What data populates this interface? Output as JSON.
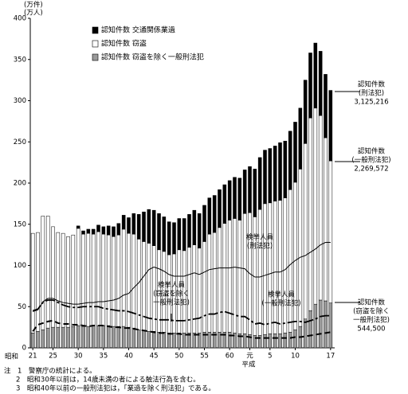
{
  "chart_data": {
    "type": "bar",
    "stacked": true,
    "y_unit_labels": [
      "(万件)",
      "(万人)"
    ],
    "ylim": [
      0,
      400
    ],
    "yticks": [
      0,
      50,
      100,
      150,
      200,
      250,
      300,
      350,
      400
    ],
    "categories": [
      "21",
      null,
      null,
      null,
      "25",
      null,
      null,
      null,
      null,
      "30",
      null,
      null,
      null,
      null,
      "35",
      null,
      null,
      null,
      null,
      "40",
      null,
      null,
      null,
      null,
      "45",
      null,
      null,
      null,
      null,
      "50",
      null,
      null,
      null,
      null,
      "55",
      null,
      null,
      null,
      null,
      "60",
      null,
      null,
      null,
      "元",
      null,
      null,
      null,
      "5",
      null,
      null,
      null,
      null,
      "10",
      null,
      null,
      null,
      null,
      null,
      null,
      "17"
    ],
    "era_labels": [
      "昭和",
      "平成"
    ],
    "series": [
      {
        "name": "認知件数 窃盗を除く一般刑法犯",
        "color": "#9a9a9a",
        "values": [
          18,
          20,
          22,
          24,
          25,
          25,
          25,
          25,
          26,
          27,
          26,
          26,
          27,
          27,
          27,
          27,
          26,
          26,
          26,
          25,
          24,
          22,
          21,
          20,
          20,
          19,
          19,
          18,
          18,
          18,
          18,
          18,
          18,
          18,
          19,
          19,
          19,
          19,
          19,
          19,
          18,
          17,
          17,
          16,
          15,
          15,
          16,
          17,
          17,
          17,
          18,
          19,
          22,
          26,
          35,
          45,
          53,
          58,
          57,
          54.45
        ]
      },
      {
        "name": "認知件数 窃盗",
        "color": "#ffffff",
        "values": [
          121,
          120,
          138,
          136,
          122,
          115,
          114,
          110,
          111,
          118,
          112,
          113,
          111,
          114,
          111,
          110,
          109,
          111,
          118,
          114,
          114,
          110,
          108,
          107,
          104,
          100,
          98,
          95,
          96,
          101,
          100,
          104,
          107,
          103,
          110,
          119,
          121,
          127,
          132,
          136,
          139,
          138,
          146,
          148,
          144,
          153,
          159,
          159,
          161,
          162,
          164,
          173,
          179,
          191,
          213,
          234,
          238,
          224,
          198,
          172.5
        ]
      },
      {
        "name": "認知件数 交通関係業過",
        "color": "#000000",
        "values": [
          0,
          0,
          0,
          0,
          0,
          0,
          0,
          0,
          0,
          3,
          4,
          5,
          6,
          8,
          9,
          11,
          12,
          14,
          17,
          19,
          25,
          30,
          36,
          41,
          43,
          44,
          42,
          40,
          38,
          38,
          39,
          40,
          42,
          42,
          44,
          44,
          45,
          46,
          47,
          48,
          50,
          51,
          53,
          56,
          58,
          63,
          65,
          66,
          67,
          70,
          69,
          71,
          73,
          74,
          77,
          79,
          79,
          78,
          77,
          85.56
        ]
      }
    ],
    "line_series": [
      {
        "color": "#000000",
        "line_style": "solid",
        "values": [
          44,
          46,
          56,
          60,
          60,
          57,
          55,
          54,
          53,
          53,
          54,
          55,
          55,
          56,
          56,
          57,
          58,
          60,
          64,
          66,
          73,
          79,
          87,
          95,
          98,
          96,
          93,
          89,
          87,
          87,
          87,
          89,
          91,
          89,
          92,
          95,
          96,
          97,
          97,
          97,
          98,
          97,
          96,
          90,
          86,
          86,
          88,
          90,
          92,
          92,
          95,
          101,
          106,
          110,
          112,
          116,
          120,
          125,
          128,
          128
        ]
      },
      {
        "color": "#000000",
        "line_style": "dashdot",
        "values": [
          45,
          47,
          55,
          58,
          58,
          55,
          52,
          50,
          49,
          49,
          50,
          50,
          50,
          50,
          48,
          47,
          46,
          45,
          45,
          44,
          42,
          40,
          38,
          36,
          35,
          34,
          34,
          34,
          33,
          33,
          33,
          34,
          35,
          36,
          39,
          41,
          41,
          43,
          44,
          42,
          40,
          38,
          38,
          34,
          29,
          30,
          28,
          30,
          31,
          29,
          30,
          31,
          32,
          32,
          31,
          33,
          35,
          38,
          39,
          39
        ]
      },
      {
        "color": "#000000",
        "line_style": "dashed",
        "values": [
          20,
          28,
          30,
          32,
          33,
          30,
          29,
          29,
          28,
          28,
          27,
          26,
          27,
          27,
          27,
          26,
          25,
          25,
          24,
          24,
          23,
          22,
          21,
          20,
          19,
          18,
          18,
          17,
          17,
          17,
          16,
          16,
          16,
          16,
          16,
          16,
          16,
          16,
          16,
          15,
          15,
          14,
          14,
          13,
          12,
          12,
          12,
          12,
          12,
          12,
          12,
          12,
          13,
          13,
          14,
          15,
          16,
          17,
          18,
          19
        ]
      }
    ],
    "annotations": [
      [
        "認知件数",
        "(刑法犯)",
        "3,125,216"
      ],
      [
        "認知件数",
        "(一般刑法犯)",
        "2,269,572"
      ],
      [
        "認知件数",
        "(窃盗を除く",
        "一般刑法犯)",
        "544,500"
      ],
      [
        "検挙人員",
        "(刑法犯)"
      ],
      [
        "検挙人員",
        "(窃盗を除く",
        "一般刑法犯)"
      ],
      [
        "検挙人員",
        "(一般刑法犯)"
      ]
    ],
    "notes": [
      "注　1　警察庁の統計による。",
      "2　昭和30年以前は，14歳未満の者による触法行為を含む。",
      "3　昭和40年以前の一般刑法犯は，「業過を除く刑法犯」である。"
    ]
  }
}
